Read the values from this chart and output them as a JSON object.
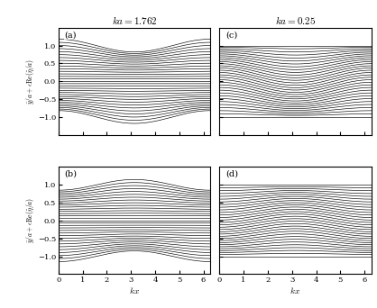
{
  "title_left": "$ka = 1.762$",
  "title_right": "$ka = 0.25$",
  "xlim": [
    0,
    6.2832
  ],
  "ylim": [
    -1.5,
    1.5
  ],
  "yticks": [
    -1.0,
    -0.5,
    0.0,
    0.5,
    1.0
  ],
  "xticks": [
    0,
    1,
    2,
    3,
    4,
    5,
    6
  ],
  "n_lines": 31,
  "panel_labels": [
    "(a)",
    "(b)",
    "(c)",
    "(d)"
  ],
  "line_color": "black",
  "line_width": 0.45,
  "background_color": "white",
  "amplitude_a": 0.18,
  "amplitude_b": 0.15,
  "amplitude_c": 0.18,
  "amplitude_d": 0.12
}
